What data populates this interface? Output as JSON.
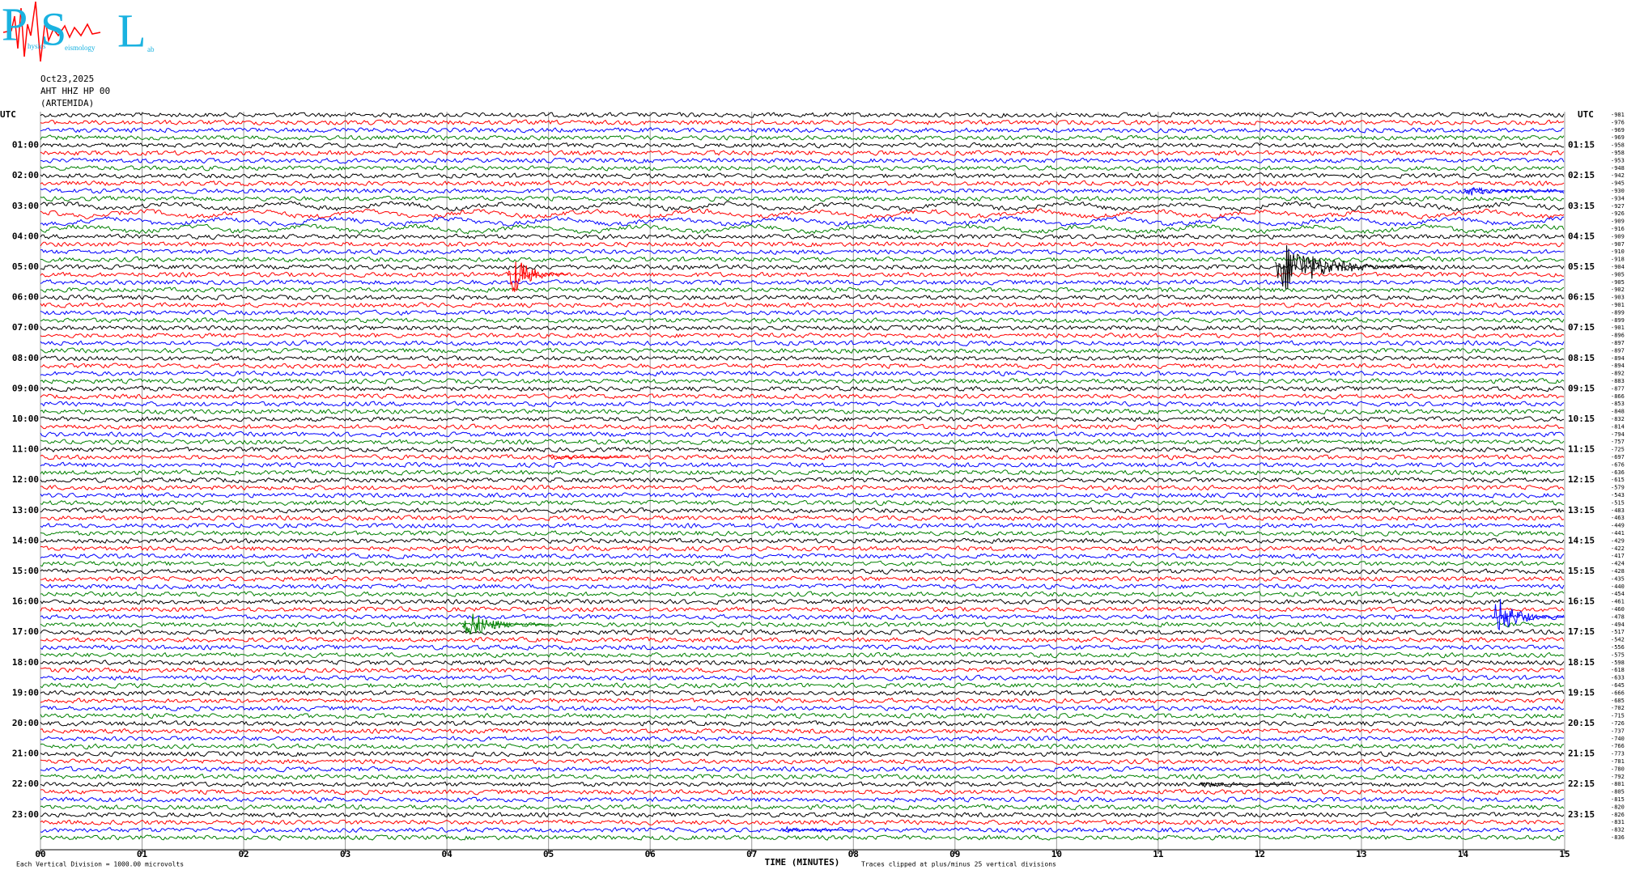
{
  "logo": {
    "letters": [
      "P",
      "S",
      "L"
    ],
    "words": [
      "hysics",
      "eismology",
      "ab"
    ]
  },
  "header": {
    "date": "Oct23,2025",
    "station": "AHT HHZ HP 00",
    "site": "(ARTEMIDA)"
  },
  "left_axis": {
    "title": "UTC",
    "labels": [
      "01:00",
      "02:00",
      "03:00",
      "04:00",
      "05:00",
      "06:00",
      "07:00",
      "08:00",
      "09:00",
      "10:00",
      "11:00",
      "12:00",
      "13:00",
      "14:00",
      "15:00",
      "16:00",
      "17:00",
      "18:00",
      "19:00",
      "20:00",
      "21:00",
      "22:00",
      "23:00"
    ]
  },
  "right_axis": {
    "title": "UTC",
    "labels": [
      "01:15",
      "02:15",
      "03:15",
      "04:15",
      "05:15",
      "06:15",
      "07:15",
      "08:15",
      "09:15",
      "10:15",
      "11:15",
      "12:15",
      "13:15",
      "14:15",
      "15:15",
      "16:15",
      "17:15",
      "18:15",
      "19:15",
      "20:15",
      "21:15",
      "22:15",
      "23:15"
    ]
  },
  "trace_values": [
    -981,
    -976,
    -969,
    -969,
    -958,
    -958,
    -953,
    -948,
    -942,
    -945,
    -930,
    -934,
    -927,
    -926,
    -909,
    -916,
    -909,
    -907,
    -910,
    -918,
    -904,
    -905,
    -905,
    -902,
    -903,
    -901,
    -899,
    -899,
    -901,
    -896,
    -897,
    -897,
    -894,
    -894,
    -892,
    -883,
    -877,
    -866,
    -853,
    -848,
    -832,
    -814,
    -794,
    -757,
    -725,
    -697,
    -676,
    -636,
    -615,
    -579,
    -543,
    -515,
    -483,
    -463,
    -449,
    -441,
    -429,
    -422,
    -417,
    -424,
    -428,
    -435,
    -440,
    -454,
    -461,
    -460,
    -478,
    -494,
    -517,
    -542,
    -556,
    -575,
    -598,
    -618,
    -633,
    -645,
    -666,
    -685,
    -702,
    -715,
    -726,
    -737,
    -740,
    -766,
    -773,
    -781,
    -780,
    -792,
    -801,
    -805,
    -815,
    -820,
    -826,
    -831,
    -832,
    -836
  ],
  "trace_colors": [
    "#000000",
    "#ff0000",
    "#0000ff",
    "#008000"
  ],
  "x_axis": {
    "title": "TIME (MINUTES)",
    "ticks": [
      "00",
      "01",
      "02",
      "03",
      "04",
      "05",
      "06",
      "07",
      "08",
      "09",
      "10",
      "11",
      "12",
      "13",
      "14",
      "15"
    ]
  },
  "footer": {
    "scale": "Each Vertical Division = 1000.00 microvolts",
    "clip": "Traces clipped at plus/minus 25 vertical divisions"
  },
  "events": [
    {
      "row": 21,
      "start": 4.6,
      "duration": 0.6,
      "amplitude": 40
    },
    {
      "row": 20,
      "start": 12.15,
      "duration": 1.5,
      "amplitude": 40
    },
    {
      "row": 67,
      "start": 4.15,
      "duration": 0.9,
      "amplitude": 24
    },
    {
      "row": 66,
      "start": 14.3,
      "duration": 0.7,
      "amplitude": 34
    },
    {
      "row": 10,
      "start": 14.0,
      "duration": 1.0,
      "amplitude": 8
    },
    {
      "row": 45,
      "start": 5.0,
      "duration": 0.8,
      "amplitude": 5
    },
    {
      "row": 88,
      "start": 11.4,
      "duration": 0.9,
      "amplitude": 5
    },
    {
      "row": 94,
      "start": 7.3,
      "duration": 0.7,
      "amplitude": 5
    }
  ]
}
